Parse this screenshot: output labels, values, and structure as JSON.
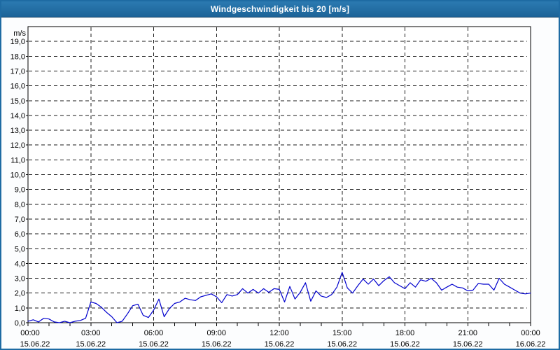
{
  "title_bar": {
    "title": "Windgeschwindigkeit bis 20 [m/s]"
  },
  "colors": {
    "titlebar_bg": "#1f6ca6",
    "titlebar_border": "#0e3e63",
    "frame": "#1e6ba3",
    "line": "#0000cd",
    "grid": "#1a1a1a",
    "plot_bg": "#ffffff",
    "page_bg": "#fcfdfe",
    "axis": "#000000"
  },
  "chart_data": {
    "type": "line",
    "title": "Windgeschwindigkeit bis 20 [m/s]",
    "xlabel": "",
    "ylabel": "m/s",
    "ylim": [
      0,
      20
    ],
    "x_range_hours": [
      0,
      24
    ],
    "grid": "dashed",
    "legend": "none",
    "y_ticks": [
      {
        "value": 19,
        "label": "19,0"
      },
      {
        "value": 18,
        "label": "18,0"
      },
      {
        "value": 17,
        "label": "17,0"
      },
      {
        "value": 16,
        "label": "16,0"
      },
      {
        "value": 15,
        "label": "15,0"
      },
      {
        "value": 14,
        "label": "14,0"
      },
      {
        "value": 13,
        "label": "13,0"
      },
      {
        "value": 12,
        "label": "12,0"
      },
      {
        "value": 11,
        "label": "11,0"
      },
      {
        "value": 10,
        "label": "10,0"
      },
      {
        "value": 9,
        "label": "9,0"
      },
      {
        "value": 8,
        "label": "8,0"
      },
      {
        "value": 7,
        "label": "7,0"
      },
      {
        "value": 6,
        "label": "6,0"
      },
      {
        "value": 5,
        "label": "5,0"
      },
      {
        "value": 4,
        "label": "4,0"
      },
      {
        "value": 3,
        "label": "3,0"
      },
      {
        "value": 2,
        "label": "2,0"
      },
      {
        "value": 1,
        "label": "1,0"
      },
      {
        "value": 0,
        "label": "0,0"
      }
    ],
    "x_ticks": [
      {
        "hour": 0,
        "time": "00:00",
        "date": "15.06.22"
      },
      {
        "hour": 3,
        "time": "03:00",
        "date": "15.06.22"
      },
      {
        "hour": 6,
        "time": "06:00",
        "date": "15.06.22"
      },
      {
        "hour": 9,
        "time": "09:00",
        "date": "15.06.22"
      },
      {
        "hour": 12,
        "time": "12:00",
        "date": "15.06.22"
      },
      {
        "hour": 15,
        "time": "15:00",
        "date": "15.06.22"
      },
      {
        "hour": 18,
        "time": "18:00",
        "date": "15.06.22"
      },
      {
        "hour": 21,
        "time": "21:00",
        "date": "15.06.22"
      },
      {
        "hour": 24,
        "time": "00:00",
        "date": "16.06.22"
      }
    ],
    "x_minor_tick_interval_hours": 1,
    "series": [
      {
        "name": "Windgeschwindigkeit",
        "unit": "m/s",
        "color": "#0000cd",
        "x_start_hour": 0,
        "x_step_hours": 0.25,
        "values": [
          0.1,
          0.2,
          0.05,
          0.3,
          0.25,
          0.05,
          0.0,
          0.1,
          0.0,
          0.1,
          0.15,
          0.3,
          1.4,
          1.3,
          1.05,
          0.7,
          0.4,
          0.0,
          0.1,
          0.6,
          1.15,
          1.25,
          0.5,
          0.35,
          0.85,
          1.6,
          0.4,
          0.95,
          1.3,
          1.4,
          1.65,
          1.55,
          1.5,
          1.75,
          1.85,
          1.95,
          1.75,
          1.35,
          1.9,
          1.8,
          1.9,
          2.3,
          2.0,
          2.25,
          2.0,
          2.3,
          2.05,
          2.3,
          2.25,
          1.4,
          2.45,
          1.6,
          2.05,
          2.7,
          1.45,
          2.15,
          1.8,
          1.7,
          1.9,
          2.4,
          3.4,
          2.35,
          2.0,
          2.5,
          2.95,
          2.6,
          2.95,
          2.5,
          2.85,
          3.1,
          2.7,
          2.5,
          2.3,
          2.7,
          2.4,
          2.9,
          2.8,
          3.0,
          2.7,
          2.2,
          2.4,
          2.6,
          2.4,
          2.35,
          2.15,
          2.2,
          2.65,
          2.6,
          2.6,
          2.2,
          3.0,
          2.6,
          2.4,
          2.2,
          2.0,
          1.95,
          2.0
        ]
      }
    ]
  }
}
